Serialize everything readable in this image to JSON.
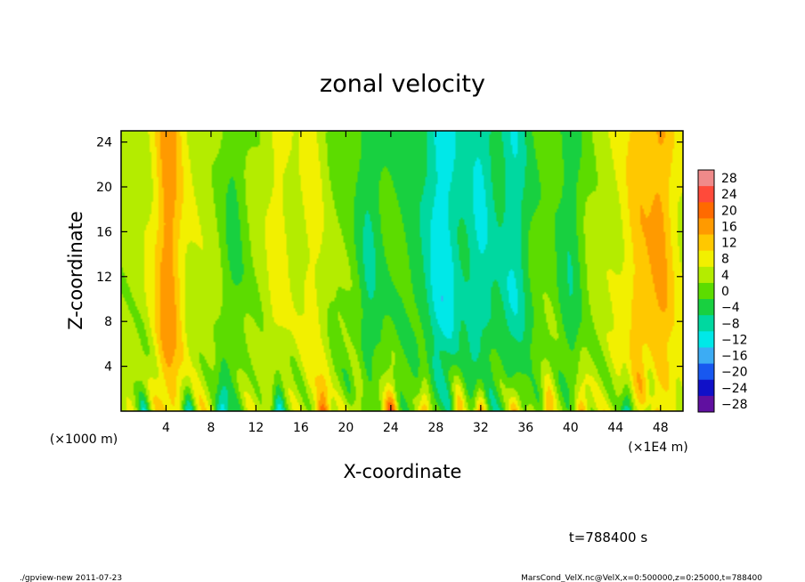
{
  "chart_data": {
    "type": "heatmap",
    "title": "zonal velocity",
    "xlabel": "X-coordinate",
    "ylabel": "Z-coordinate",
    "x_unit_left": "(×1000 m)",
    "x_unit_right": "(×1E4 m)",
    "xlim": [
      0,
      50
    ],
    "ylim": [
      0,
      25
    ],
    "x_ticks": [
      4,
      8,
      12,
      16,
      20,
      24,
      28,
      32,
      36,
      40,
      44,
      48
    ],
    "y_ticks": [
      4,
      8,
      12,
      16,
      20,
      24
    ],
    "colorbar": {
      "levels": [
        28,
        24,
        20,
        16,
        12,
        8,
        4,
        0,
        -4,
        -8,
        -12,
        -16,
        -20,
        -24,
        -28
      ],
      "colors": [
        "#f08a8a",
        "#ff4a3a",
        "#ff6a00",
        "#ff9a00",
        "#ffc800",
        "#f2f000",
        "#b4ec00",
        "#5cdc00",
        "#18d040",
        "#00d8a0",
        "#00e8e8",
        "#3cacf4",
        "#1858f0",
        "#1010c8",
        "#6010a0"
      ]
    },
    "structure": {
      "columns_x": [
        4,
        4.5,
        10,
        14,
        17,
        22,
        28,
        29,
        32,
        35,
        40,
        46,
        48
      ],
      "column_kind": [
        "pos",
        "pos",
        "neg",
        "pos",
        "pos",
        "neg",
        "neg",
        "neg",
        "neg",
        "neg",
        "neg",
        "pos",
        "pos"
      ],
      "near_surface_peak_x": [
        2,
        6,
        9,
        14,
        18,
        21,
        24,
        27,
        30,
        32,
        35,
        38,
        41,
        45,
        47
      ],
      "near_surface_peak_sign": [
        "neg",
        "neg",
        "neg",
        "neg",
        "pos",
        "pos",
        "pos",
        "pos",
        "pos",
        "pos",
        "pos",
        "pos",
        "pos",
        "neg",
        "neg"
      ]
    }
  },
  "footer": {
    "time_label": "t=788400 s",
    "program": "./gpview-new  2011-07-23",
    "source": "MarsCond_VelX.nc@VelX,x=0:500000,z=0:25000,t=788400"
  }
}
